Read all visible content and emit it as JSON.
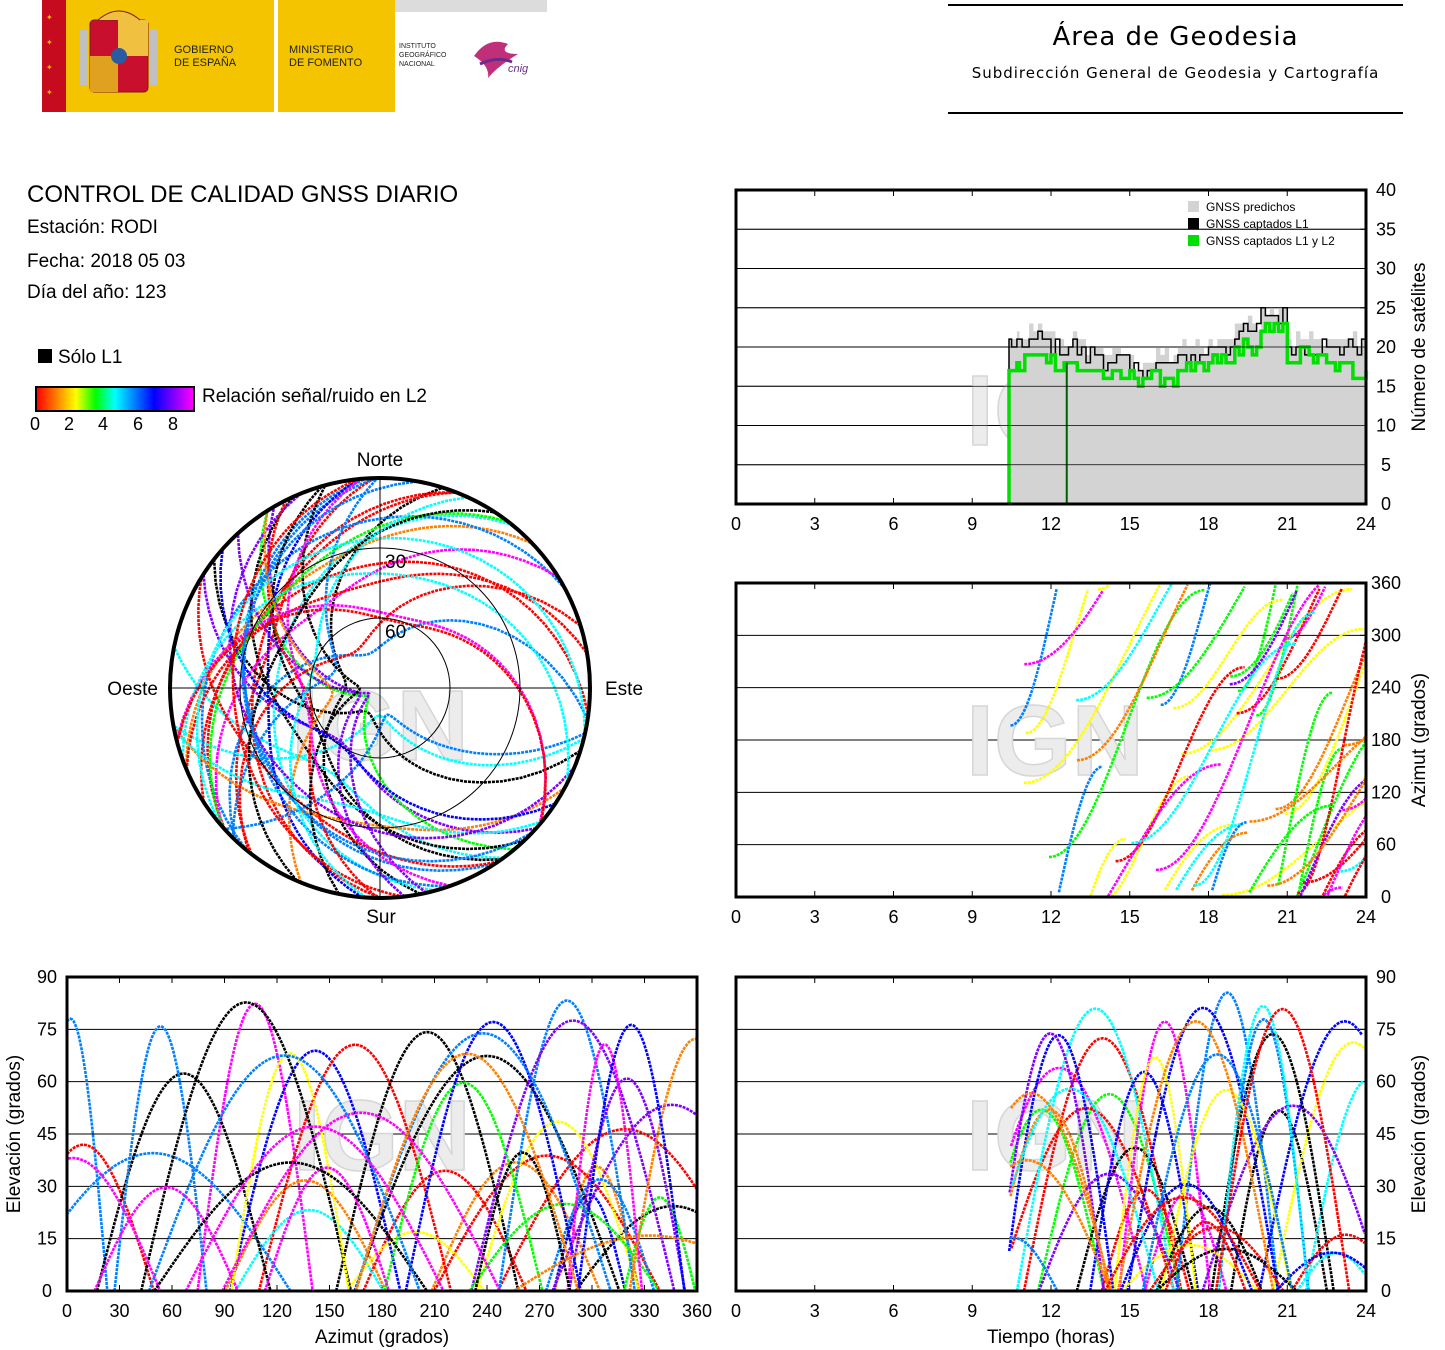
{
  "header": {
    "gov_line1": "GOBIERNO",
    "gov_line2": "DE ESPAÑA",
    "min_line1": "MINISTERIO",
    "min_line2": "DE FOMENTO",
    "ign_line1": "INSTITUTO",
    "ign_line2": "GEOGRÁFICO",
    "ign_line3": "NACIONAL",
    "cnig": "cnig",
    "area_title": "Área de Geodesia",
    "area_subtitle": "Subdirección General de Geodesia y Cartografía"
  },
  "info": {
    "title": "CONTROL DE CALIDAD GNSS DIARIO",
    "station": "Estación: RODI",
    "date": "Fecha: 2018 05 03",
    "doy": "Día del año: 123"
  },
  "legend": {
    "l1_only": "Sólo L1",
    "snr_label": "Relación señal/ruido en L2",
    "snr_ticks": [
      "0",
      "2",
      "4",
      "6",
      "8"
    ]
  },
  "watermark": "IGN",
  "colors": {
    "predicted": "#d3d3d3",
    "l1": "#000000",
    "l1l2": "#00e000",
    "snr_scale": [
      "#ff0000",
      "#ff8000",
      "#ffff00",
      "#00ff00",
      "#00ffff",
      "#0080ff",
      "#0000ff",
      "#8000ff",
      "#ff00ff"
    ]
  },
  "chart_data": [
    {
      "id": "satellites",
      "type": "area",
      "ylabel": "Número de satélites",
      "ylim": [
        0,
        40
      ],
      "xlim": [
        0,
        24
      ],
      "xticks": [
        "0",
        "3",
        "6",
        "9",
        "12",
        "15",
        "18",
        "21",
        "24"
      ],
      "yticks": [
        "0",
        "5",
        "10",
        "15",
        "20",
        "25",
        "30",
        "35",
        "40"
      ],
      "grid": true,
      "legend_position": "top-right",
      "series": [
        {
          "name": "GNSS predichos",
          "x": [
            10.4,
            11,
            12,
            13,
            14,
            15,
            16,
            17,
            18,
            19,
            20,
            21,
            22,
            23,
            24
          ],
          "values": [
            21,
            22,
            21,
            20,
            19,
            18,
            19,
            20,
            21,
            23,
            25,
            21,
            21,
            21,
            21
          ]
        },
        {
          "name": "GNSS captados L1",
          "x": [
            10.4,
            11,
            12,
            13,
            14,
            15,
            16,
            17,
            18,
            19,
            20,
            21,
            22,
            23,
            24
          ],
          "values": [
            20,
            21,
            20,
            19,
            18,
            17,
            18,
            19,
            20,
            22,
            24,
            20,
            20,
            20,
            20
          ]
        },
        {
          "name": "GNSS captados L1 y L2",
          "x": [
            10.4,
            11,
            12,
            13,
            14,
            15,
            16,
            17,
            18,
            19,
            20,
            21,
            22,
            23,
            24
          ],
          "values": [
            17,
            19,
            18,
            17,
            16,
            16,
            16,
            17,
            18,
            20,
            22,
            19,
            18,
            17,
            17
          ]
        }
      ],
      "annotations": [
        {
          "x": 12.6,
          "y": 0
        }
      ]
    },
    {
      "id": "azimuth-time",
      "type": "scatter",
      "ylabel": "Azimut (grados)",
      "ylim": [
        0,
        360
      ],
      "xlim": [
        0,
        24
      ],
      "xticks": [
        "0",
        "3",
        "6",
        "9",
        "12",
        "15",
        "18",
        "21",
        "24"
      ],
      "yticks": [
        "0",
        "60",
        "120",
        "180",
        "240",
        "300",
        "360"
      ],
      "grid": true,
      "data_start_hour": 10.4
    },
    {
      "id": "elevation-azimuth",
      "type": "scatter",
      "xlabel": "Azimut (grados)",
      "ylabel": "Elevación (grados)",
      "xlim": [
        0,
        360
      ],
      "ylim": [
        0,
        90
      ],
      "xticks": [
        "0",
        "30",
        "60",
        "90",
        "120",
        "150",
        "180",
        "210",
        "240",
        "270",
        "300",
        "330",
        "360"
      ],
      "yticks": [
        "0",
        "15",
        "30",
        "45",
        "60",
        "75",
        "90"
      ],
      "grid": true
    },
    {
      "id": "elevation-time",
      "type": "scatter",
      "xlabel": "Tiempo (horas)",
      "ylabel": "Elevación (grados)",
      "xlim": [
        0,
        24
      ],
      "ylim": [
        0,
        90
      ],
      "xticks": [
        "0",
        "3",
        "6",
        "9",
        "12",
        "15",
        "18",
        "21",
        "24"
      ],
      "yticks": [
        "0",
        "15",
        "30",
        "45",
        "60",
        "75",
        "90"
      ],
      "grid": true,
      "data_start_hour": 10.4
    },
    {
      "id": "skyplot",
      "type": "scatter",
      "directions": {
        "north": "Norte",
        "south": "Sur",
        "east": "Este",
        "west": "Oeste"
      },
      "rings": [
        "30",
        "60"
      ]
    }
  ]
}
